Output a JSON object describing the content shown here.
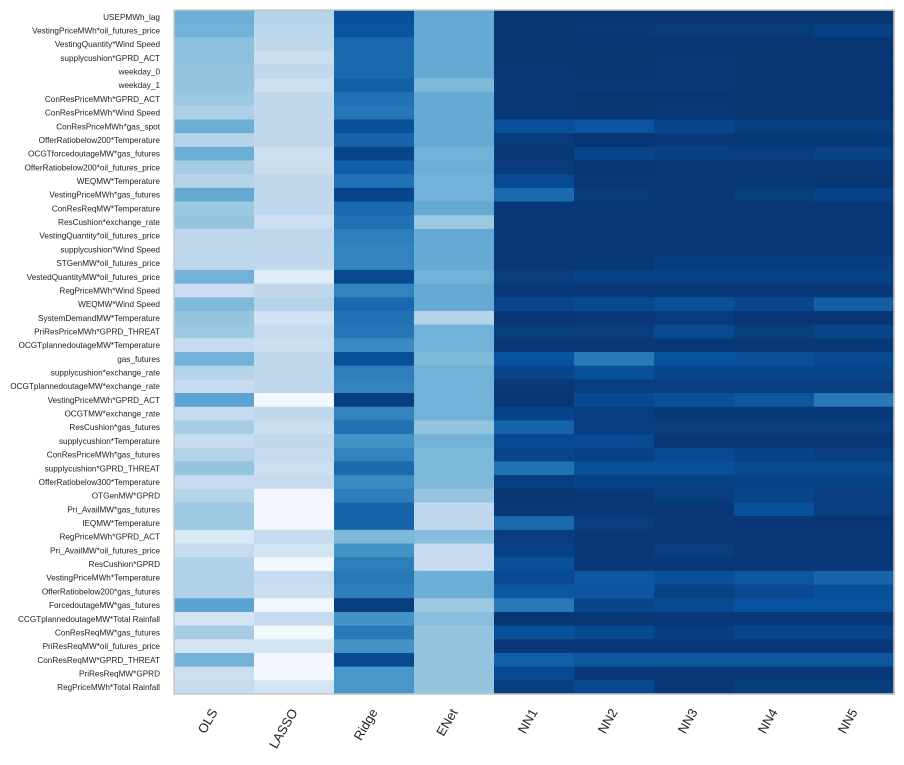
{
  "chart_data": {
    "type": "heatmap",
    "title": "",
    "xlabel": "",
    "ylabel": "",
    "colormap": "Blues",
    "value_range": [
      0,
      1
    ],
    "columns": [
      "OLS",
      "LASSO",
      "Ridge",
      "ENet",
      "NN1",
      "NN2",
      "NN3",
      "NN4",
      "NN5"
    ],
    "rows": [
      "USEPMWh_lag",
      "VestingPriceMWh*oil_futures_price",
      "VestingQuantity*Wind Speed",
      "supplycushion*GPRD_ACT",
      "weekday_0",
      "weekday_1",
      "ConResPriceMWh*GPRD_ACT",
      "ConResPriceMWh*Wind Speed",
      "ConResPriceMWh*gas_spot",
      "OfferRatiobelow200*Temperature",
      "OCGTforcedoutageMW*gas_futures",
      "OfferRatiobelow200*oil_futures_price",
      "WEQMW*Temperature",
      "VestingPriceMWh*gas_futures",
      "ConResReqMW*Temperature",
      "ResCushion*exchange_rate",
      "VestingQuantity*oil_futures_price",
      "supplycushion*Wind Speed",
      "STGenMW*oil_futures_price",
      "VestedQuantityMW*oil_futures_price",
      "RegPriceMWh*Wind Speed",
      "WEQMW*Wind Speed",
      "SystemDemandMW*Temperature",
      "PriResPriceMWh*GPRD_THREAT",
      "OCGTplannedoutageMW*Temperature",
      "gas_futures",
      "supplycushion*exchange_rate",
      "OCGTplannedoutageMW*exchange_rate",
      "VestingPriceMWh*GPRD_ACT",
      "OCGTMW*exchange_rate",
      "ResCushion*gas_futures",
      "supplycushion*Temperature",
      "ConResPriceMWh*gas_futures",
      "supplycushion*GPRD_THREAT",
      "OfferRatiobelow300*Temperature",
      "OTGenMW*GPRD",
      "Pri_AvailMW*gas_futures",
      "IEQMW*Temperature",
      "RegPriceMWh*GPRD_ACT",
      "Pri_AvailMW*oil_futures_price",
      "ResCushion*GPRD",
      "VestingPriceMWh*Temperature",
      "OfferRatiobelow200*gas_futures",
      "ForcedoutageMW*gas_futures",
      "CCGTplannedoutageMW*Total Rainfall",
      "ConResReqMW*gas_futures",
      "PriResReqMW*oil_futures_price",
      "ConResReqMW*GPRD_THREAT",
      "PriResReqMW*GPRD",
      "RegPriceMWh*Total Rainfall"
    ],
    "values": [
      [
        0.5,
        0.3,
        0.88,
        0.52,
        0.98,
        0.98,
        0.98,
        0.98,
        0.98
      ],
      [
        0.48,
        0.28,
        0.86,
        0.52,
        0.98,
        0.97,
        0.96,
        0.96,
        0.94
      ],
      [
        0.42,
        0.27,
        0.78,
        0.52,
        0.98,
        0.98,
        0.98,
        0.98,
        0.98
      ],
      [
        0.42,
        0.23,
        0.78,
        0.52,
        0.98,
        0.98,
        0.97,
        0.98,
        0.98
      ],
      [
        0.4,
        0.27,
        0.78,
        0.52,
        0.97,
        0.98,
        0.97,
        0.98,
        0.98
      ],
      [
        0.4,
        0.22,
        0.82,
        0.45,
        0.97,
        0.97,
        0.97,
        0.98,
        0.98
      ],
      [
        0.38,
        0.27,
        0.75,
        0.52,
        0.97,
        0.98,
        0.98,
        0.98,
        0.98
      ],
      [
        0.33,
        0.27,
        0.73,
        0.52,
        0.97,
        0.98,
        0.97,
        0.98,
        0.98
      ],
      [
        0.5,
        0.27,
        0.88,
        0.52,
        0.88,
        0.86,
        0.92,
        0.95,
        0.95
      ],
      [
        0.3,
        0.27,
        0.8,
        0.52,
        0.96,
        0.98,
        0.97,
        0.97,
        0.97
      ],
      [
        0.5,
        0.22,
        0.92,
        0.48,
        0.97,
        0.92,
        0.94,
        0.95,
        0.93
      ],
      [
        0.35,
        0.23,
        0.82,
        0.5,
        0.96,
        0.98,
        0.97,
        0.97,
        0.97
      ],
      [
        0.3,
        0.27,
        0.75,
        0.48,
        0.9,
        0.97,
        0.97,
        0.97,
        0.98
      ],
      [
        0.52,
        0.27,
        0.92,
        0.48,
        0.78,
        0.96,
        0.97,
        0.95,
        0.93
      ],
      [
        0.38,
        0.27,
        0.78,
        0.52,
        0.97,
        0.97,
        0.97,
        0.97,
        0.97
      ],
      [
        0.4,
        0.22,
        0.75,
        0.38,
        0.97,
        0.97,
        0.97,
        0.97,
        0.97
      ],
      [
        0.27,
        0.27,
        0.7,
        0.52,
        0.97,
        0.97,
        0.97,
        0.97,
        0.97
      ],
      [
        0.27,
        0.27,
        0.68,
        0.52,
        0.97,
        0.97,
        0.97,
        0.97,
        0.97
      ],
      [
        0.27,
        0.27,
        0.68,
        0.52,
        0.97,
        0.97,
        0.95,
        0.95,
        0.95
      ],
      [
        0.48,
        0.12,
        0.9,
        0.48,
        0.95,
        0.93,
        0.93,
        0.93,
        0.93
      ],
      [
        0.23,
        0.27,
        0.68,
        0.52,
        0.97,
        0.97,
        0.97,
        0.97,
        0.97
      ],
      [
        0.45,
        0.3,
        0.78,
        0.52,
        0.92,
        0.9,
        0.88,
        0.92,
        0.82
      ],
      [
        0.4,
        0.2,
        0.75,
        0.3,
        0.98,
        0.97,
        0.96,
        0.98,
        0.98
      ],
      [
        0.38,
        0.25,
        0.73,
        0.48,
        0.95,
        0.95,
        0.9,
        0.95,
        0.92
      ],
      [
        0.25,
        0.23,
        0.65,
        0.48,
        0.97,
        0.97,
        0.97,
        0.97,
        0.97
      ],
      [
        0.48,
        0.27,
        0.88,
        0.45,
        0.87,
        0.72,
        0.87,
        0.88,
        0.9
      ],
      [
        0.3,
        0.27,
        0.7,
        0.48,
        0.92,
        0.88,
        0.92,
        0.92,
        0.92
      ],
      [
        0.25,
        0.27,
        0.68,
        0.48,
        0.97,
        0.95,
        0.95,
        0.95,
        0.95
      ],
      [
        0.55,
        0.02,
        0.95,
        0.48,
        0.98,
        0.9,
        0.88,
        0.85,
        0.72
      ],
      [
        0.25,
        0.27,
        0.68,
        0.48,
        0.93,
        0.95,
        0.97,
        0.97,
        0.97
      ],
      [
        0.35,
        0.23,
        0.75,
        0.4,
        0.8,
        0.95,
        0.95,
        0.95,
        0.95
      ],
      [
        0.25,
        0.27,
        0.62,
        0.48,
        0.9,
        0.9,
        0.97,
        0.97,
        0.97
      ],
      [
        0.3,
        0.25,
        0.68,
        0.45,
        0.92,
        0.93,
        0.9,
        0.93,
        0.95
      ],
      [
        0.4,
        0.22,
        0.78,
        0.45,
        0.75,
        0.88,
        0.88,
        0.9,
        0.9
      ],
      [
        0.25,
        0.25,
        0.65,
        0.45,
        0.95,
        0.93,
        0.93,
        0.93,
        0.93
      ],
      [
        0.3,
        0.03,
        0.7,
        0.4,
        0.98,
        0.97,
        0.95,
        0.92,
        0.95
      ],
      [
        0.38,
        0.03,
        0.8,
        0.27,
        0.97,
        0.97,
        0.97,
        0.88,
        0.95
      ],
      [
        0.38,
        0.03,
        0.8,
        0.27,
        0.78,
        0.95,
        0.97,
        0.98,
        0.98
      ],
      [
        0.15,
        0.25,
        0.45,
        0.43,
        0.95,
        0.97,
        0.97,
        0.97,
        0.97
      ],
      [
        0.25,
        0.18,
        0.62,
        0.25,
        0.93,
        0.97,
        0.95,
        0.97,
        0.97
      ],
      [
        0.32,
        0.03,
        0.7,
        0.25,
        0.88,
        0.97,
        0.97,
        0.97,
        0.97
      ],
      [
        0.32,
        0.25,
        0.72,
        0.5,
        0.9,
        0.85,
        0.88,
        0.85,
        0.8
      ],
      [
        0.32,
        0.22,
        0.7,
        0.5,
        0.85,
        0.85,
        0.93,
        0.9,
        0.88
      ],
      [
        0.55,
        0.03,
        0.95,
        0.38,
        0.72,
        0.92,
        0.9,
        0.87,
        0.87
      ],
      [
        0.18,
        0.25,
        0.62,
        0.43,
        0.98,
        0.97,
        0.97,
        0.97,
        0.97
      ],
      [
        0.35,
        0.03,
        0.72,
        0.4,
        0.88,
        0.9,
        0.95,
        0.92,
        0.92
      ],
      [
        0.18,
        0.18,
        0.62,
        0.4,
        0.97,
        0.97,
        0.97,
        0.97,
        0.97
      ],
      [
        0.48,
        0.03,
        0.9,
        0.4,
        0.82,
        0.85,
        0.85,
        0.85,
        0.85
      ],
      [
        0.22,
        0.03,
        0.6,
        0.4,
        0.9,
        0.97,
        0.97,
        0.97,
        0.97
      ],
      [
        0.25,
        0.18,
        0.6,
        0.4,
        0.95,
        0.9,
        0.97,
        0.95,
        0.95
      ]
    ]
  }
}
